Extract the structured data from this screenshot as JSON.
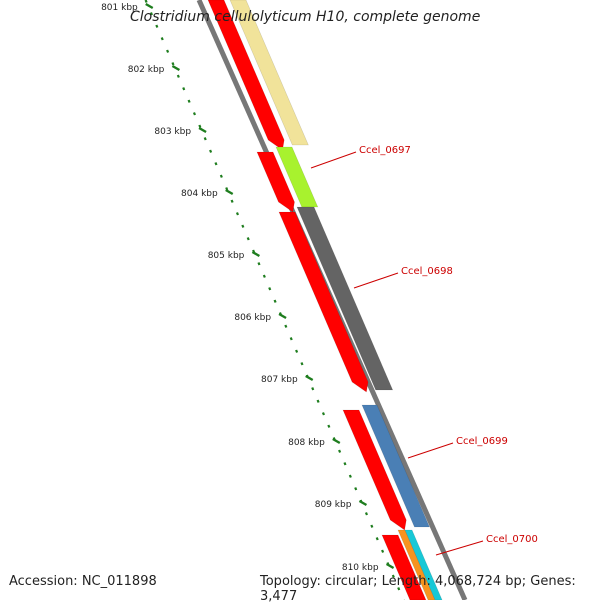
{
  "title": "Clostridium cellulolyticum H10, complete genome",
  "footer": {
    "accession": "Accession: NC_011898",
    "summary": "Topology: circular; Length: 4,068,724 bp; Genes: 3,477"
  },
  "kbp_labels": [
    "801 kbp",
    "802 kbp",
    "803 kbp",
    "804 kbp",
    "805 kbp",
    "806 kbp",
    "807 kbp",
    "808 kbp",
    "809 kbp",
    "810 kbp"
  ],
  "genes": [
    {
      "name": "Ccel_0697",
      "color": "#a8f22e"
    },
    {
      "name": "Ccel_0698",
      "color": "#646464"
    },
    {
      "name": "Ccel_0699",
      "color": "#4a7fb5"
    },
    {
      "name": "Ccel_0700",
      "color": "#f7931e"
    }
  ],
  "colors": {
    "cds": "#ff0000",
    "tick": "#1e7d1e",
    "label": "#cc0000",
    "backbone": "#777777",
    "upstream_gene": "#f1e39a",
    "next_gene": "#18c8d6"
  }
}
